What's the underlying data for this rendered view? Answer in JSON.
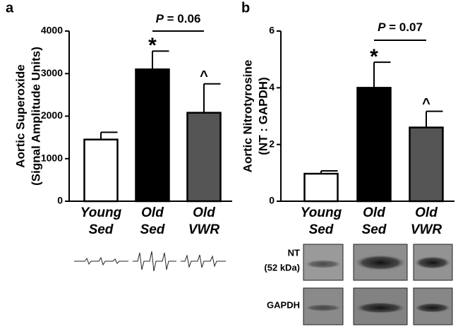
{
  "chart_data": [
    {
      "type": "bar",
      "panel_label": "a",
      "ylabel": [
        "Aortic Superoxide",
        "(Signal Amplitude Units)"
      ],
      "categories": [
        [
          "Young",
          "Sed"
        ],
        [
          "Old",
          "Sed"
        ],
        [
          "Old",
          "VWR"
        ]
      ],
      "values": [
        1450,
        3100,
        2080
      ],
      "errors": [
        170,
        430,
        680
      ],
      "colors": [
        "#ffffff",
        "#000000",
        "#555555"
      ],
      "markers": [
        null,
        "*",
        "^"
      ],
      "annotation": "P = 0.06",
      "ylim": [
        0,
        4000
      ],
      "yticks": [
        0,
        1000,
        2000,
        3000,
        4000
      ]
    },
    {
      "type": "bar",
      "panel_label": "b",
      "ylabel": [
        "Aortic Nitrotyrosine",
        "(NT : GAPDH)"
      ],
      "categories": [
        [
          "Young",
          "Sed"
        ],
        [
          "Old",
          "Sed"
        ],
        [
          "Old",
          "VWR"
        ]
      ],
      "values": [
        0.97,
        4.0,
        2.6
      ],
      "errors": [
        0.1,
        0.9,
        0.57
      ],
      "colors": [
        "#ffffff",
        "#000000",
        "#555555"
      ],
      "markers": [
        null,
        "*",
        "^"
      ],
      "annotation": "P = 0.07",
      "ylim": [
        0,
        6
      ],
      "yticks": [
        0,
        2,
        4,
        6
      ],
      "blot_labels": [
        "NT",
        "(52 kDa)",
        "GAPDH"
      ]
    }
  ]
}
